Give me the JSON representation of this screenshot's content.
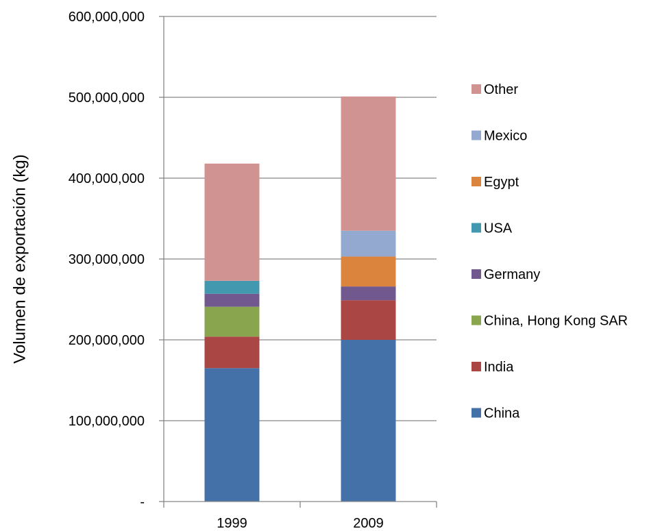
{
  "chart_data": {
    "type": "bar",
    "stacked": true,
    "title": "",
    "xlabel": "",
    "ylabel": "Volumen de exportación (kg)",
    "categories": [
      "1999",
      "2009"
    ],
    "ylim": [
      0,
      600000000
    ],
    "yticks": [
      {
        "value": 0,
        "label": "-"
      },
      {
        "value": 100000000,
        "label": "100,000,000"
      },
      {
        "value": 200000000,
        "label": "200,000,000"
      },
      {
        "value": 300000000,
        "label": "300,000,000"
      },
      {
        "value": 400000000,
        "label": "400,000,000"
      },
      {
        "value": 500000000,
        "label": "500,000,000"
      },
      {
        "value": 600000000,
        "label": "600,000,000"
      }
    ],
    "grid": true,
    "legend_position": "right",
    "series": [
      {
        "name": "China",
        "color": "#4472A8",
        "values": [
          165000000,
          200000000
        ]
      },
      {
        "name": "India",
        "color": "#AA4644",
        "values": [
          39000000,
          49000000
        ]
      },
      {
        "name": "China, Hong Kong SAR",
        "color": "#89A54E",
        "values": [
          37000000,
          0
        ]
      },
      {
        "name": "Germany",
        "color": "#71588F",
        "values": [
          16000000,
          17000000
        ]
      },
      {
        "name": "USA",
        "color": "#4198AF",
        "values": [
          16000000,
          0
        ]
      },
      {
        "name": "Egypt",
        "color": "#DB843D",
        "values": [
          0,
          37000000
        ]
      },
      {
        "name": "Mexico",
        "color": "#93A9CF",
        "values": [
          0,
          32000000
        ]
      },
      {
        "name": "Other",
        "color": "#D19392",
        "values": [
          145000000,
          166000000
        ]
      }
    ]
  }
}
